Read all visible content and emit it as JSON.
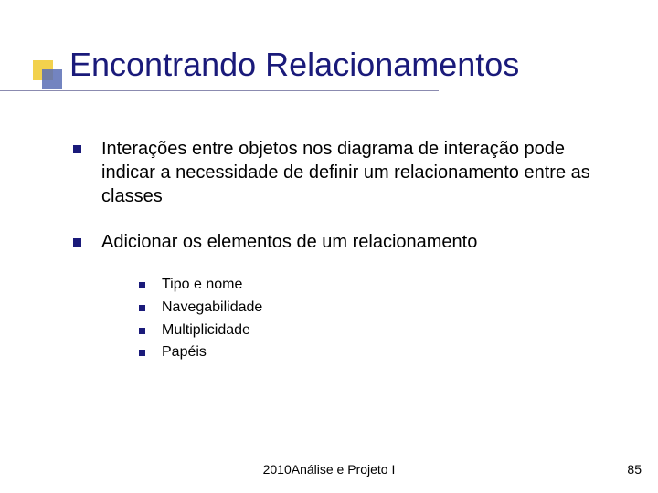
{
  "slide": {
    "title": "Encontrando Relacionamentos",
    "bullets": [
      {
        "text": "Interações entre objetos nos diagrama de interação pode indicar a necessidade de definir um relacionamento entre as classes"
      },
      {
        "text": "Adicionar os elementos de um relacionamento",
        "sub": [
          "Tipo e nome",
          "Navegabilidade",
          "Multiplicidade",
          "Papéis"
        ]
      }
    ],
    "footer_center": "2010Análise e Projeto I",
    "footer_page": "85",
    "colors": {
      "title_color": "#1a1a7a",
      "bullet_color": "#1a1a7a",
      "accent_yellow": "#f2d14d",
      "accent_blue": "#5a6fb5",
      "underline": "#8b8bb0",
      "background": "#ffffff",
      "text": "#000000"
    },
    "typography": {
      "title_fontsize": 36,
      "l1_fontsize": 20,
      "l2_fontsize": 16,
      "footer_fontsize": 14,
      "font_family": "Verdana"
    }
  }
}
